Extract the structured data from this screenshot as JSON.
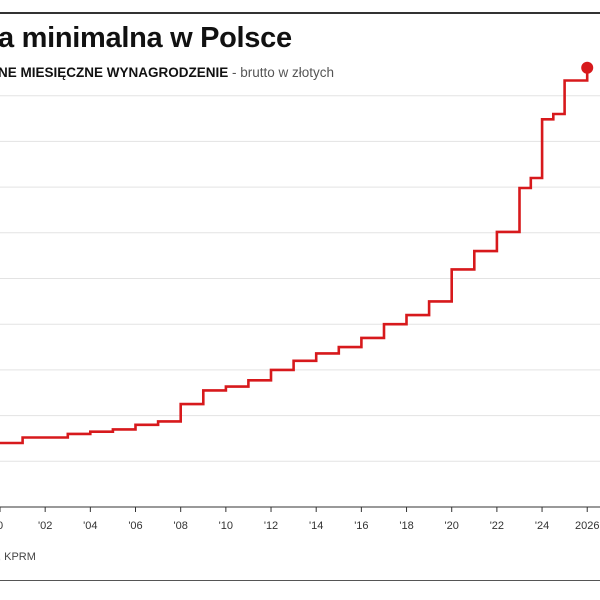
{
  "header": {
    "title": "a minimalna w Polsce",
    "subtitle_bold": "NE MIESIĘCZNE WYNAGRODZENIE",
    "subtitle_light": " - brutto w złotych"
  },
  "footer": {
    "source": ", KPRM"
  },
  "colors": {
    "line": "#d7191c",
    "grid": "#e3e3e3",
    "axis": "#333333"
  },
  "chart_data": {
    "type": "line",
    "step": true,
    "title": "a minimalna w Polsce",
    "subtitle": "NE MIESIĘCZNE WYNAGRODZENIE - brutto w złotych",
    "xlabel": "",
    "ylabel": "",
    "x_tick_labels": [
      "0",
      "'02",
      "'04",
      "'06",
      "'08",
      "'10",
      "'12",
      "'14",
      "'16",
      "'18",
      "'20",
      "'22",
      "'24",
      "2026"
    ],
    "x_tick_values": [
      2000,
      2002,
      2004,
      2006,
      2008,
      2010,
      2012,
      2014,
      2016,
      2018,
      2020,
      2022,
      2024,
      2026
    ],
    "xlim": [
      2000,
      2026.3
    ],
    "ylim": [
      0,
      5000
    ],
    "y_gridlines": [
      500,
      1000,
      1500,
      2000,
      2500,
      3000,
      3500,
      4000,
      4500
    ],
    "grid": true,
    "legend": "none",
    "series": [
      {
        "x": [
          2000,
          2001,
          2002,
          2003,
          2004,
          2005,
          2006,
          2007,
          2008,
          2009,
          2010,
          2011,
          2012,
          2013,
          2014,
          2015,
          2016,
          2017,
          2018,
          2019,
          2020,
          2021,
          2022,
          2023,
          2023.5,
          2024,
          2024.5,
          2025,
          2026
        ],
        "y": [
          700,
          760,
          760,
          800,
          824,
          849,
          899,
          936,
          1126,
          1276,
          1317,
          1386,
          1500,
          1600,
          1680,
          1750,
          1850,
          2000,
          2100,
          2250,
          2600,
          2800,
          3010,
          3490,
          3600,
          4242,
          4300,
          4666,
          4806
        ]
      }
    ],
    "end_marker": {
      "x": 2026,
      "y": 4806
    }
  }
}
